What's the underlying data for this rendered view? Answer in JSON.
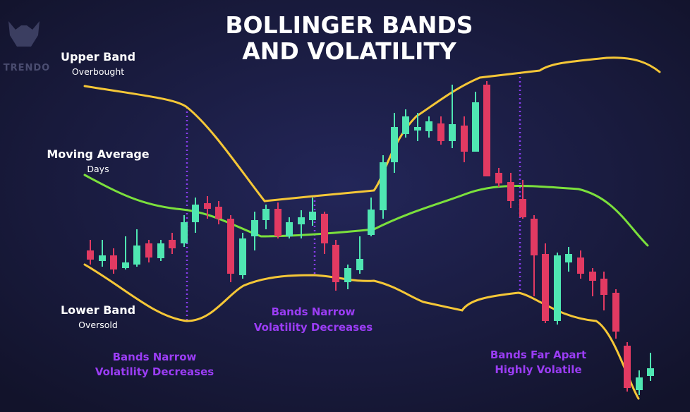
{
  "title": [
    "BOLLINGER BANDS",
    "AND VOLATILITY"
  ],
  "logo": "TRENDO",
  "labels": {
    "upper_band": {
      "title": "Upper Band",
      "subtitle": "Overbought"
    },
    "moving_average": {
      "title": "Moving Average",
      "subtitle": "Days"
    },
    "lower_band": {
      "title": "Lower Band",
      "subtitle": "Oversold"
    }
  },
  "annotations": [
    [
      "Bands Narrow",
      "Volatility Decreases"
    ],
    [
      "Bands Narrow",
      "Volatility Decreases"
    ],
    [
      "Bands Far Apart",
      "Highly Volatile"
    ]
  ]
}
